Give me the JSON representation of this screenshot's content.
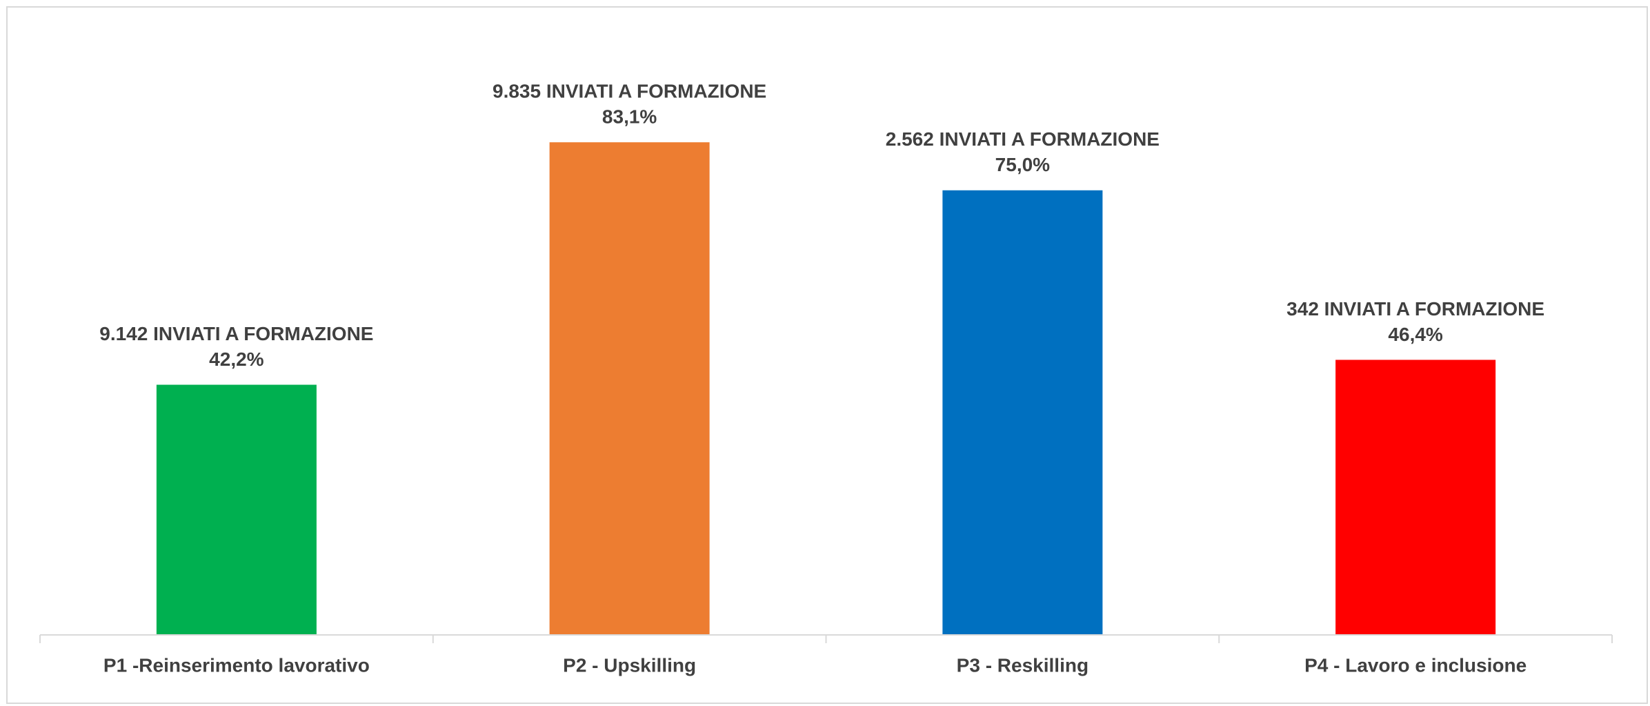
{
  "chart_data": {
    "type": "bar",
    "categories": [
      "P1 -Reinserimento lavorativo",
      "P2 - Upskilling",
      "P3 - Reskilling",
      "P4 - Lavoro e inclusione"
    ],
    "values": [
      42.2,
      83.1,
      75.0,
      46.4
    ],
    "value_labels": [
      "42,2%",
      "83,1%",
      "75,0%",
      "46,4%"
    ],
    "annotations": [
      "9.142 INVIATI A FORMAZIONE",
      "9.835 INVIATI A FORMAZIONE",
      "2.562 INVIATI A FORMAZIONE",
      "342 INVIATI A FORMAZIONE"
    ],
    "colors": [
      "#00b050",
      "#ed7d31",
      "#0070c0",
      "#ff0000"
    ],
    "ylim": [
      0,
      100
    ]
  }
}
